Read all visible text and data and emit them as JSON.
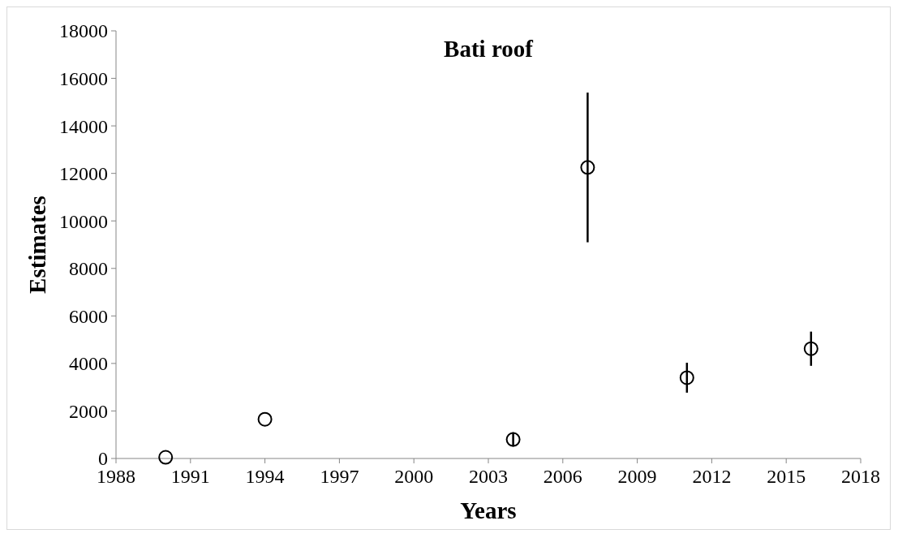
{
  "chart_data": {
    "type": "scatter",
    "title": "Bati roof",
    "xlabel": "Years",
    "ylabel": "Estimates",
    "x": [
      1990,
      1994,
      2004,
      2007,
      2011,
      2016
    ],
    "values": [
      50,
      1650,
      800,
      12250,
      3400,
      4620
    ],
    "errors": [
      null,
      null,
      300,
      3150,
      630,
      720
    ],
    "color": "#000000",
    "marker": "circle",
    "grid": false,
    "xlim": [
      1988,
      2018
    ],
    "xticks": [
      1988,
      1991,
      1994,
      1997,
      2000,
      2003,
      2006,
      2009,
      2012,
      2015,
      2018
    ],
    "ylim": [
      0,
      18000
    ],
    "yticks": [
      0,
      2000,
      4000,
      6000,
      8000,
      10000,
      12000,
      14000,
      16000,
      18000
    ]
  }
}
